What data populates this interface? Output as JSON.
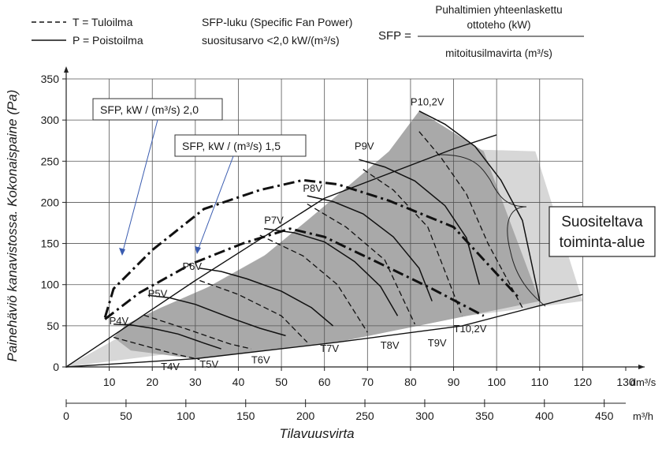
{
  "legend": {
    "line1": "T = Tuloilma",
    "line2": "P = Poistoilma"
  },
  "sfp_note": {
    "line1": "SFP-luku (Specific Fan Power)",
    "line2": "suositusarvo <2,0 kW/(m³/s)"
  },
  "formula": {
    "lhs": "SFP =",
    "numerator1": "Puhaltimien yhteenlaskettu",
    "numerator2": "ottoteho (kW)",
    "denominator": "mitoitusilmavirta (m³/s)"
  },
  "recommended_label": {
    "line1": "Suositeltava",
    "line2": "toiminta-alue"
  },
  "callouts": [
    "SFP, kW / (m³/s) 2,0",
    "SFP, kW / (m³/s) 1,5"
  ],
  "colors": {
    "grid": "#555555",
    "area_light": "#d7d7d7",
    "area_dark": "#a9a9a9",
    "curve": "#111111"
  },
  "chart_data": {
    "type": "line",
    "title": "",
    "ylabel": "Painehäviö kanavistossa. Kokonaispaine (Pa)",
    "xlabel": "Tilavuusvirta",
    "xunit_primary": "dm³/s",
    "xunit_secondary": "m³/h",
    "xlim": [
      0,
      130
    ],
    "ylim": [
      0,
      350
    ],
    "grid": true,
    "x_ticks": [
      "10",
      "20",
      "30",
      "40",
      "50",
      "60",
      "70",
      "80",
      "90",
      "100",
      "110",
      "120",
      "130"
    ],
    "y_ticks": [
      "0",
      "50",
      "100",
      "150",
      "200",
      "250",
      "300",
      "350"
    ],
    "x2_ticks": [
      {
        "x": 0,
        "label": "0"
      },
      {
        "x": 13.9,
        "label": "50"
      },
      {
        "x": 27.8,
        "label": "100"
      },
      {
        "x": 41.7,
        "label": "150"
      },
      {
        "x": 55.6,
        "label": "200"
      },
      {
        "x": 69.4,
        "label": "250"
      },
      {
        "x": 83.3,
        "label": "300"
      },
      {
        "x": 97.2,
        "label": "350"
      },
      {
        "x": 111.1,
        "label": "400"
      },
      {
        "x": 125,
        "label": "450"
      }
    ],
    "region_light": [
      [
        0,
        0
      ],
      [
        90,
        265
      ],
      [
        109,
        262
      ],
      [
        120,
        80
      ]
    ],
    "region_dark": [
      [
        82,
        311
      ],
      [
        97,
        262
      ],
      [
        110,
        80
      ],
      [
        63,
        30
      ],
      [
        30,
        10
      ],
      [
        15,
        20
      ],
      [
        11,
        36
      ],
      [
        14,
        52
      ],
      [
        22,
        72
      ],
      [
        33,
        97
      ],
      [
        46,
        135
      ],
      [
        56,
        178
      ],
      [
        66,
        222
      ],
      [
        75,
        262
      ]
    ],
    "speed_curves": [
      {
        "label": "P4V",
        "points": [
          [
            11,
            52
          ],
          [
            15,
            51
          ],
          [
            20,
            47
          ],
          [
            26,
            40
          ],
          [
            32,
            29
          ],
          [
            36,
            22
          ]
        ]
      },
      {
        "label": "P5V",
        "points": [
          [
            19,
            87
          ],
          [
            24,
            84
          ],
          [
            30,
            76
          ],
          [
            38,
            60
          ],
          [
            45,
            47
          ],
          [
            51,
            38
          ]
        ]
      },
      {
        "label": "P6V",
        "points": [
          [
            31,
            120
          ],
          [
            36,
            116
          ],
          [
            42,
            107
          ],
          [
            50,
            92
          ],
          [
            57,
            72
          ],
          [
            62,
            50
          ]
        ]
      },
      {
        "label": "P7V",
        "points": [
          [
            46,
            168
          ],
          [
            53,
            163
          ],
          [
            60,
            152
          ],
          [
            67,
            128
          ],
          [
            73,
            98
          ],
          [
            77,
            62
          ]
        ]
      },
      {
        "label": "P8V",
        "points": [
          [
            56,
            208
          ],
          [
            62,
            201
          ],
          [
            69,
            186
          ],
          [
            76,
            158
          ],
          [
            82,
            120
          ],
          [
            85,
            80
          ]
        ]
      },
      {
        "label": "P9V",
        "points": [
          [
            68,
            252
          ],
          [
            74,
            243
          ],
          [
            81,
            226
          ],
          [
            88,
            196
          ],
          [
            93,
            157
          ],
          [
            96,
            100
          ]
        ]
      },
      {
        "label": "P10,2V",
        "points": [
          [
            82,
            311
          ],
          [
            88,
            295
          ],
          [
            95,
            268
          ],
          [
            101,
            227
          ],
          [
            106,
            178
          ],
          [
            110,
            80
          ]
        ]
      }
    ],
    "supply_curves": [
      {
        "label": "T4V",
        "points": [
          [
            11,
            36
          ],
          [
            18,
            26
          ],
          [
            25,
            16
          ],
          [
            31,
            9
          ]
        ]
      },
      {
        "label": "T5V",
        "points": [
          [
            18,
            63
          ],
          [
            28,
            46
          ],
          [
            38,
            28
          ],
          [
            43,
            22
          ]
        ]
      },
      {
        "label": "T6V",
        "points": [
          [
            31,
            105
          ],
          [
            40,
            88
          ],
          [
            50,
            62
          ],
          [
            56,
            30
          ]
        ]
      },
      {
        "label": "T7V",
        "points": [
          [
            45,
            160
          ],
          [
            55,
            135
          ],
          [
            63,
            100
          ],
          [
            70,
            42
          ]
        ]
      },
      {
        "label": "T8V",
        "points": [
          [
            56,
            198
          ],
          [
            65,
            170
          ],
          [
            74,
            130
          ],
          [
            81,
            52
          ]
        ]
      },
      {
        "label": "T9V",
        "points": [
          [
            69,
            240
          ],
          [
            76,
            215
          ],
          [
            84,
            170
          ],
          [
            92,
            62
          ]
        ]
      },
      {
        "label": "T10,2V",
        "points": [
          [
            82,
            286
          ],
          [
            87,
            255
          ],
          [
            93,
            210
          ],
          [
            98,
            150
          ],
          [
            106,
            72
          ]
        ]
      }
    ],
    "system_curves": [
      {
        "name": "SFP, kW / (m³/s) 2,0",
        "points": [
          [
            9,
            60
          ],
          [
            11,
            95
          ],
          [
            20,
            142
          ],
          [
            32,
            192
          ],
          [
            45,
            215
          ],
          [
            55,
            227
          ],
          [
            63,
            222
          ],
          [
            75,
            202
          ],
          [
            90,
            170
          ],
          [
            105,
            85
          ]
        ]
      },
      {
        "name": "SFP, kW / (m³/s) 1,5",
        "points": [
          [
            9,
            58
          ],
          [
            17,
            90
          ],
          [
            29,
            125
          ],
          [
            41,
            150
          ],
          [
            52,
            168
          ],
          [
            60,
            158
          ],
          [
            72,
            128
          ],
          [
            85,
            95
          ],
          [
            97,
            62
          ]
        ]
      }
    ],
    "lower_boundary": [
      [
        0,
        0
      ],
      [
        30,
        10
      ],
      [
        63,
        30
      ],
      [
        92,
        50
      ],
      [
        120,
        88
      ]
    ],
    "upper_boundary": [
      [
        0,
        0
      ],
      [
        30,
        105
      ],
      [
        60,
        205
      ],
      [
        90,
        265
      ],
      [
        100,
        282
      ]
    ],
    "p_labels": [
      {
        "text": "P4V",
        "x": 10,
        "y": 52
      },
      {
        "text": "P5V",
        "x": 19,
        "y": 85
      },
      {
        "text": "P6V",
        "x": 27,
        "y": 118
      },
      {
        "text": "P7V",
        "x": 46,
        "y": 174
      },
      {
        "text": "P8V",
        "x": 55,
        "y": 213
      },
      {
        "text": "P9V",
        "x": 67,
        "y": 264
      },
      {
        "text": "P10,2V",
        "x": 80,
        "y": 318
      }
    ],
    "t_labels": [
      {
        "text": "T4V",
        "x": 22,
        "y": 0
      },
      {
        "text": "T5V",
        "x": 31,
        "y": 3
      },
      {
        "text": "T6V",
        "x": 43,
        "y": 8
      },
      {
        "text": "T7V",
        "x": 59,
        "y": 22
      },
      {
        "text": "T8V",
        "x": 73,
        "y": 26
      },
      {
        "text": "T9V",
        "x": 84,
        "y": 29
      },
      {
        "text": "T10,2V",
        "x": 90,
        "y": 46
      }
    ]
  }
}
